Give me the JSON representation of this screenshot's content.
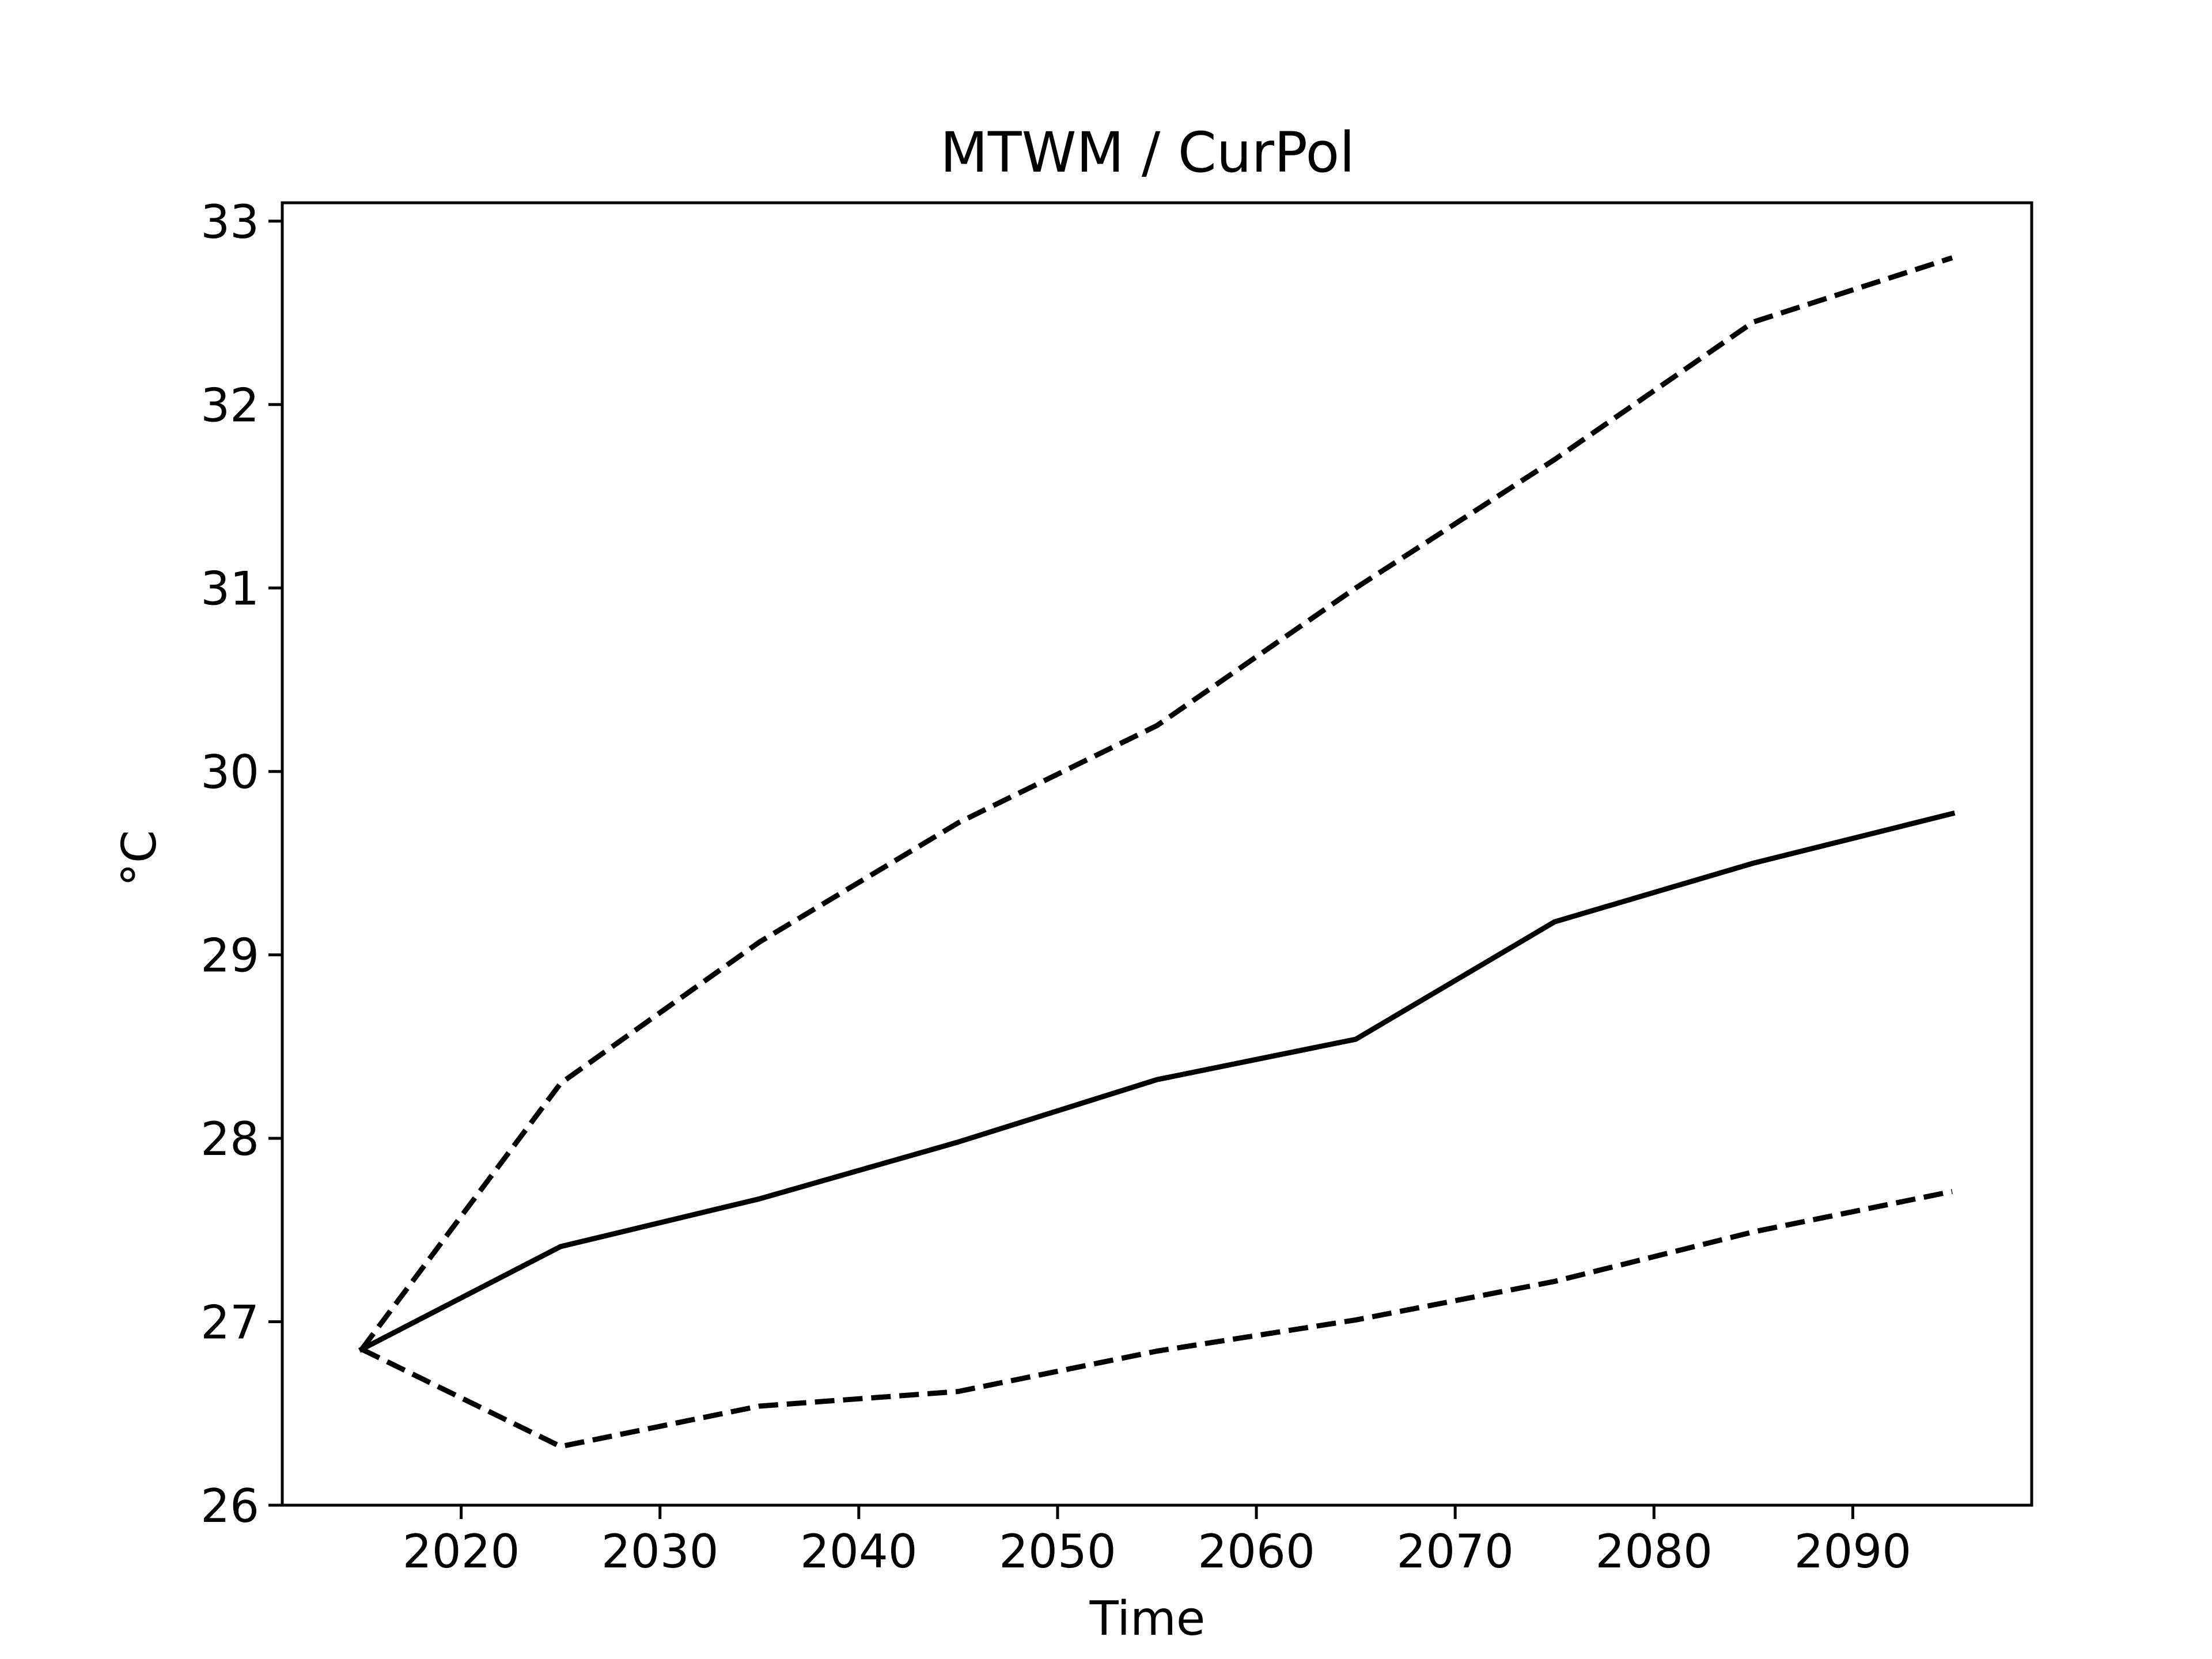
{
  "chart_data": {
    "type": "line",
    "title": "MTWM / CurPol",
    "xlabel": "Time",
    "ylabel": "°C",
    "xlim": [
      2011,
      2099
    ],
    "ylim": [
      26,
      33.1
    ],
    "xticks": [
      2020,
      2030,
      2040,
      2050,
      2060,
      2070,
      2080,
      2090
    ],
    "yticks": [
      26,
      27,
      28,
      29,
      30,
      31,
      32,
      33
    ],
    "grid": false,
    "legend": "none",
    "line_color": "#000000",
    "x": [
      2015,
      2025,
      2035,
      2045,
      2055,
      2065,
      2075,
      2085,
      2095
    ],
    "series": [
      {
        "style": "solid",
        "values": [
          26.85,
          27.41,
          27.67,
          27.98,
          28.32,
          28.54,
          29.18,
          29.5,
          29.77
        ]
      },
      {
        "style": "dashed",
        "values": [
          26.85,
          28.3,
          29.07,
          29.72,
          30.25,
          31.0,
          31.7,
          32.45,
          32.8
        ]
      },
      {
        "style": "dashed",
        "values": [
          26.85,
          26.32,
          26.54,
          26.62,
          26.84,
          27.01,
          27.22,
          27.49,
          27.71
        ]
      }
    ]
  }
}
